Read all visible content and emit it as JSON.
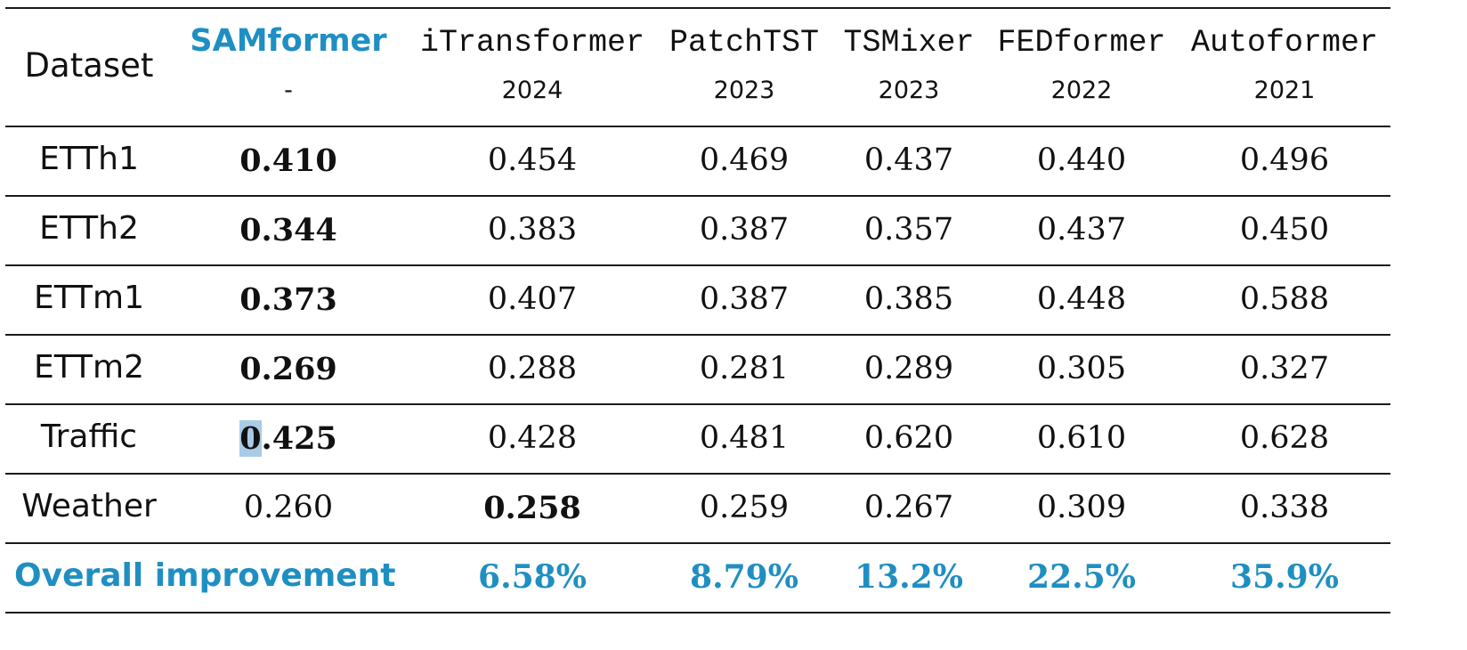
{
  "table": {
    "header": {
      "dataset_label": "Dataset",
      "models": [
        {
          "name": "SAMformer",
          "year": "-"
        },
        {
          "name": "iTransformer",
          "year": "2024"
        },
        {
          "name": "PatchTST",
          "year": "2023"
        },
        {
          "name": "TSMixer",
          "year": "2023"
        },
        {
          "name": "FEDformer",
          "year": "2022"
        },
        {
          "name": "Autoformer",
          "year": "2021"
        }
      ]
    },
    "rows": [
      {
        "dataset": "ETTh1",
        "values": [
          "0.410",
          "0.454",
          "0.469",
          "0.437",
          "0.440",
          "0.496"
        ],
        "best_index": 0
      },
      {
        "dataset": "ETTh2",
        "values": [
          "0.344",
          "0.383",
          "0.387",
          "0.357",
          "0.437",
          "0.450"
        ],
        "best_index": 0
      },
      {
        "dataset": "ETTm1",
        "values": [
          "0.373",
          "0.407",
          "0.387",
          "0.385",
          "0.448",
          "0.588"
        ],
        "best_index": 0
      },
      {
        "dataset": "ETTm2",
        "values": [
          "0.269",
          "0.288",
          "0.281",
          "0.289",
          "0.305",
          "0.327"
        ],
        "best_index": 0
      },
      {
        "dataset": "Traffic",
        "values": [
          "0.425",
          "0.428",
          "0.481",
          "0.620",
          "0.610",
          "0.628"
        ],
        "best_index": 0
      },
      {
        "dataset": "Weather",
        "values": [
          "0.260",
          "0.258",
          "0.259",
          "0.267",
          "0.309",
          "0.338"
        ],
        "best_index": 1
      }
    ],
    "improvement": {
      "label": "Overall improvement",
      "values": [
        "6.58%",
        "8.79%",
        "13.2%",
        "22.5%",
        "35.9%"
      ]
    },
    "accent_color": "#1f8fc2",
    "selection_highlight_color": "#a9cbe6"
  }
}
